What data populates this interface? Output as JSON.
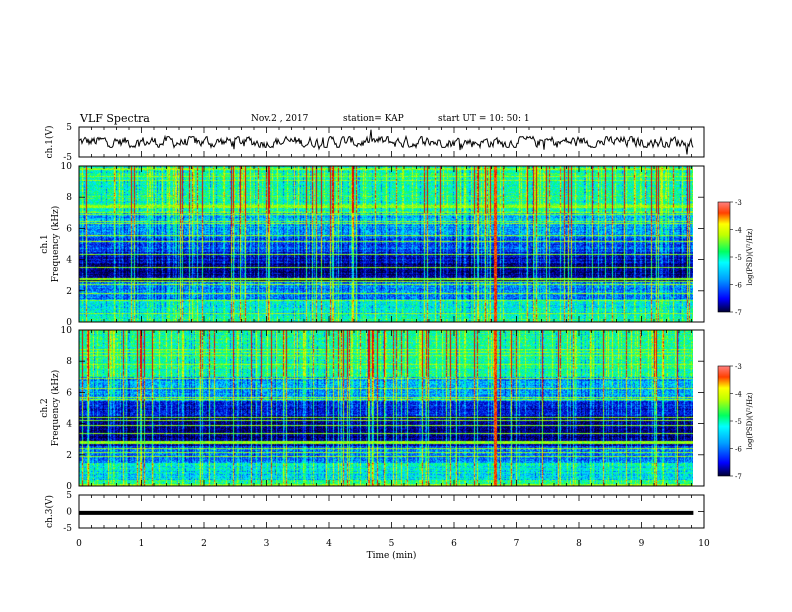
{
  "header": {
    "title": "VLF Spectra",
    "date": "Nov.2 , 2017",
    "station": "station= KAP",
    "start": "start UT = 10: 50: 1"
  },
  "colors": {
    "spectrogram_palette": [
      "#000033",
      "#00008b",
      "#0000ff",
      "#0080ff",
      "#00ffff",
      "#00ff80",
      "#80ff00",
      "#ffff00",
      "#ff8000",
      "#ff0000"
    ],
    "waveform": "#000000",
    "background": "#ffffff"
  },
  "chart_data": [
    {
      "type": "line",
      "panel": "ch1-waveform",
      "ylabel": "ch.1(V)",
      "ylim": [
        -5,
        5
      ],
      "yticks": [
        "5",
        "-5"
      ],
      "xlim": [
        0,
        10
      ],
      "x_extent": [
        0,
        9.83
      ],
      "series": [
        {
          "values_note": "noisy waveform",
          "amplitude_range": [
            -1.8,
            1.8
          ],
          "mean": 0
        }
      ]
    },
    {
      "type": "heatmap",
      "panel": "ch1-spectrogram",
      "ylabel": "ch.1\nFrequency (kHz)",
      "ylim": [
        0,
        10
      ],
      "yticks": [
        "0",
        "2",
        "4",
        "6",
        "8",
        "10"
      ],
      "xlim": [
        0,
        10
      ],
      "x_extent": [
        0,
        9.83
      ],
      "color_range": [
        -7,
        -3
      ],
      "colorbar_label": "log(PSD)(V²/Hz)",
      "colorbar_ticks": [
        "-3",
        "-4",
        "-5",
        "-6",
        "-7"
      ],
      "strong_vertical_line_min": 6.65
    },
    {
      "type": "heatmap",
      "panel": "ch2-spectrogram",
      "ylabel": "ch.2\nFrequency (kHz)",
      "ylim": [
        0,
        10
      ],
      "yticks": [
        "0",
        "2",
        "4",
        "6",
        "8",
        "10"
      ],
      "xlim": [
        0,
        10
      ],
      "x_extent": [
        0,
        9.83
      ],
      "color_range": [
        -7,
        -3
      ],
      "colorbar_label": "log(PSD)(V²/Hz)",
      "colorbar_ticks": [
        "-3",
        "-4",
        "-5",
        "-6",
        "-7"
      ],
      "strong_vertical_line_min": 6.65
    },
    {
      "type": "line",
      "panel": "ch3-waveform",
      "ylabel": "ch.3(V)",
      "ylim": [
        -5,
        5
      ],
      "yticks": [
        "5",
        "0",
        "-5"
      ],
      "xlim": [
        0,
        10
      ],
      "x_extent": [
        0,
        9.83
      ],
      "xlabel": "Time (min)",
      "xticks": [
        "0",
        "1",
        "2",
        "3",
        "4",
        "5",
        "6",
        "7",
        "8",
        "9",
        "10"
      ],
      "series": [
        {
          "values": [
            -0.4
          ],
          "constant": true
        }
      ]
    }
  ]
}
